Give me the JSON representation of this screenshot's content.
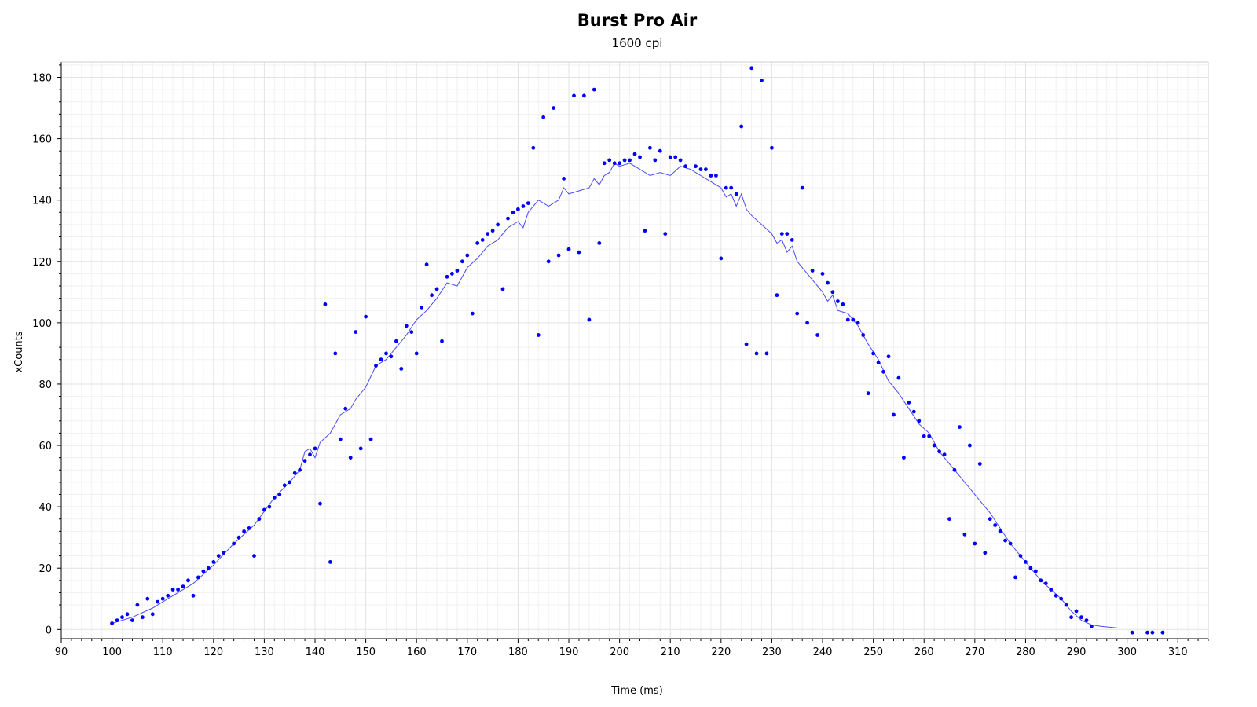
{
  "chart_data": {
    "type": "scatter",
    "title": "Burst Pro Air",
    "subtitle": "1600 cpi",
    "xlabel": "Time (ms)",
    "ylabel": "xCounts",
    "xlim": [
      90,
      316
    ],
    "ylim": [
      -3,
      185
    ],
    "x_ticks": [
      90,
      100,
      110,
      120,
      130,
      140,
      150,
      160,
      170,
      180,
      190,
      200,
      210,
      220,
      230,
      240,
      250,
      260,
      270,
      280,
      290,
      300,
      310
    ],
    "y_ticks": [
      0,
      20,
      40,
      60,
      80,
      100,
      120,
      140,
      160,
      180
    ],
    "grid": true,
    "legend": "none",
    "colors": {
      "points": "#0000ff",
      "line": "#4a4aff",
      "grid_major": "#e3e3e3",
      "grid_minor": "#f1f1f1",
      "axis": "#000000"
    },
    "series": [
      {
        "kind": "points",
        "points": [
          [
            100,
            2
          ],
          [
            101,
            3
          ],
          [
            102,
            4
          ],
          [
            103,
            5
          ],
          [
            104,
            3
          ],
          [
            105,
            8
          ],
          [
            106,
            4
          ],
          [
            107,
            10
          ],
          [
            108,
            5
          ],
          [
            109,
            9
          ],
          [
            110,
            10
          ],
          [
            111,
            11
          ],
          [
            112,
            13
          ],
          [
            113,
            13
          ],
          [
            114,
            14
          ],
          [
            115,
            16
          ],
          [
            116,
            11
          ],
          [
            117,
            17
          ],
          [
            118,
            19
          ],
          [
            119,
            20
          ],
          [
            120,
            22
          ],
          [
            121,
            24
          ],
          [
            122,
            25
          ],
          [
            124,
            28
          ],
          [
            125,
            30
          ],
          [
            126,
            32
          ],
          [
            127,
            33
          ],
          [
            128,
            24
          ],
          [
            129,
            36
          ],
          [
            130,
            39
          ],
          [
            131,
            40
          ],
          [
            132,
            43
          ],
          [
            133,
            44
          ],
          [
            134,
            47
          ],
          [
            135,
            48
          ],
          [
            136,
            51
          ],
          [
            137,
            52
          ],
          [
            138,
            55
          ],
          [
            139,
            57
          ],
          [
            140,
            59
          ],
          [
            141,
            41
          ],
          [
            142,
            106
          ],
          [
            143,
            22
          ],
          [
            144,
            90
          ],
          [
            145,
            62
          ],
          [
            146,
            72
          ],
          [
            147,
            56
          ],
          [
            148,
            97
          ],
          [
            149,
            59
          ],
          [
            150,
            102
          ],
          [
            151,
            62
          ],
          [
            152,
            86
          ],
          [
            153,
            88
          ],
          [
            154,
            90
          ],
          [
            155,
            89
          ],
          [
            156,
            94
          ],
          [
            157,
            85
          ],
          [
            158,
            99
          ],
          [
            159,
            97
          ],
          [
            160,
            90
          ],
          [
            161,
            105
          ],
          [
            162,
            119
          ],
          [
            163,
            109
          ],
          [
            164,
            111
          ],
          [
            165,
            94
          ],
          [
            166,
            115
          ],
          [
            167,
            116
          ],
          [
            168,
            117
          ],
          [
            169,
            120
          ],
          [
            170,
            122
          ],
          [
            171,
            103
          ],
          [
            172,
            126
          ],
          [
            173,
            127
          ],
          [
            174,
            129
          ],
          [
            175,
            130
          ],
          [
            176,
            132
          ],
          [
            177,
            111
          ],
          [
            178,
            134
          ],
          [
            179,
            136
          ],
          [
            180,
            137
          ],
          [
            181,
            138
          ],
          [
            182,
            139
          ],
          [
            183,
            157
          ],
          [
            184,
            96
          ],
          [
            185,
            167
          ],
          [
            186,
            120
          ],
          [
            187,
            170
          ],
          [
            188,
            122
          ],
          [
            189,
            147
          ],
          [
            190,
            124
          ],
          [
            191,
            174
          ],
          [
            192,
            123
          ],
          [
            193,
            174
          ],
          [
            194,
            101
          ],
          [
            195,
            176
          ],
          [
            196,
            126
          ],
          [
            197,
            152
          ],
          [
            198,
            153
          ],
          [
            199,
            152
          ],
          [
            200,
            152
          ],
          [
            201,
            153
          ],
          [
            202,
            153
          ],
          [
            203,
            155
          ],
          [
            204,
            154
          ],
          [
            205,
            130
          ],
          [
            206,
            157
          ],
          [
            207,
            153
          ],
          [
            208,
            156
          ],
          [
            209,
            129
          ],
          [
            210,
            154
          ],
          [
            211,
            154
          ],
          [
            212,
            153
          ],
          [
            213,
            151
          ],
          [
            215,
            151
          ],
          [
            216,
            150
          ],
          [
            217,
            150
          ],
          [
            218,
            148
          ],
          [
            219,
            148
          ],
          [
            220,
            121
          ],
          [
            221,
            144
          ],
          [
            222,
            144
          ],
          [
            223,
            142
          ],
          [
            224,
            164
          ],
          [
            225,
            93
          ],
          [
            226,
            183
          ],
          [
            227,
            90
          ],
          [
            228,
            179
          ],
          [
            229,
            90
          ],
          [
            230,
            157
          ],
          [
            231,
            109
          ],
          [
            232,
            129
          ],
          [
            233,
            129
          ],
          [
            234,
            127
          ],
          [
            235,
            103
          ],
          [
            236,
            144
          ],
          [
            237,
            100
          ],
          [
            238,
            117
          ],
          [
            239,
            96
          ],
          [
            240,
            116
          ],
          [
            241,
            113
          ],
          [
            242,
            110
          ],
          [
            243,
            107
          ],
          [
            244,
            106
          ],
          [
            245,
            101
          ],
          [
            246,
            101
          ],
          [
            247,
            100
          ],
          [
            248,
            96
          ],
          [
            249,
            77
          ],
          [
            250,
            90
          ],
          [
            251,
            87
          ],
          [
            252,
            84
          ],
          [
            253,
            89
          ],
          [
            254,
            70
          ],
          [
            255,
            82
          ],
          [
            256,
            56
          ],
          [
            257,
            74
          ],
          [
            258,
            71
          ],
          [
            259,
            68
          ],
          [
            260,
            63
          ],
          [
            261,
            63
          ],
          [
            262,
            60
          ],
          [
            263,
            58
          ],
          [
            264,
            57
          ],
          [
            265,
            36
          ],
          [
            266,
            52
          ],
          [
            267,
            66
          ],
          [
            268,
            31
          ],
          [
            269,
            60
          ],
          [
            270,
            28
          ],
          [
            271,
            54
          ],
          [
            272,
            25
          ],
          [
            273,
            36
          ],
          [
            274,
            34
          ],
          [
            275,
            32
          ],
          [
            276,
            29
          ],
          [
            277,
            28
          ],
          [
            278,
            17
          ],
          [
            279,
            24
          ],
          [
            280,
            22
          ],
          [
            281,
            20
          ],
          [
            282,
            19
          ],
          [
            283,
            16
          ],
          [
            284,
            15
          ],
          [
            285,
            13
          ],
          [
            286,
            11
          ],
          [
            287,
            10
          ],
          [
            288,
            8
          ],
          [
            289,
            4
          ],
          [
            290,
            6
          ],
          [
            291,
            4
          ],
          [
            292,
            3
          ],
          [
            293,
            1
          ],
          [
            301,
            -1
          ],
          [
            304,
            -1
          ],
          [
            305,
            -1
          ],
          [
            307,
            -1
          ]
        ]
      },
      {
        "kind": "line",
        "points": [
          [
            100,
            2
          ],
          [
            104,
            4
          ],
          [
            108,
            7
          ],
          [
            112,
            11
          ],
          [
            116,
            15
          ],
          [
            120,
            21
          ],
          [
            124,
            28
          ],
          [
            128,
            34
          ],
          [
            132,
            43
          ],
          [
            135,
            48
          ],
          [
            137,
            52
          ],
          [
            138,
            58
          ],
          [
            139,
            59
          ],
          [
            140,
            56
          ],
          [
            141,
            61
          ],
          [
            143,
            64
          ],
          [
            145,
            70
          ],
          [
            147,
            72
          ],
          [
            148,
            75
          ],
          [
            150,
            79
          ],
          [
            152,
            86
          ],
          [
            154,
            88
          ],
          [
            156,
            92
          ],
          [
            158,
            96
          ],
          [
            160,
            101
          ],
          [
            162,
            104
          ],
          [
            164,
            108
          ],
          [
            166,
            113
          ],
          [
            168,
            112
          ],
          [
            170,
            118
          ],
          [
            172,
            121
          ],
          [
            174,
            125
          ],
          [
            176,
            127
          ],
          [
            178,
            131
          ],
          [
            180,
            133
          ],
          [
            181,
            131
          ],
          [
            182,
            136
          ],
          [
            184,
            140
          ],
          [
            186,
            138
          ],
          [
            188,
            140
          ],
          [
            189,
            144
          ],
          [
            190,
            142
          ],
          [
            192,
            143
          ],
          [
            194,
            144
          ],
          [
            195,
            147
          ],
          [
            196,
            145
          ],
          [
            197,
            148
          ],
          [
            198,
            149
          ],
          [
            199,
            152
          ],
          [
            200,
            151
          ],
          [
            202,
            152
          ],
          [
            204,
            150
          ],
          [
            206,
            148
          ],
          [
            208,
            149
          ],
          [
            210,
            148
          ],
          [
            212,
            151
          ],
          [
            214,
            150
          ],
          [
            216,
            148
          ],
          [
            218,
            146
          ],
          [
            220,
            144
          ],
          [
            221,
            141
          ],
          [
            222,
            142
          ],
          [
            223,
            138
          ],
          [
            224,
            142
          ],
          [
            225,
            137
          ],
          [
            226,
            135
          ],
          [
            228,
            132
          ],
          [
            230,
            129
          ],
          [
            231,
            126
          ],
          [
            232,
            127
          ],
          [
            233,
            123
          ],
          [
            234,
            125
          ],
          [
            235,
            120
          ],
          [
            237,
            116
          ],
          [
            239,
            112
          ],
          [
            240,
            110
          ],
          [
            241,
            107
          ],
          [
            242,
            109
          ],
          [
            243,
            104
          ],
          [
            245,
            103
          ],
          [
            247,
            99
          ],
          [
            249,
            93
          ],
          [
            251,
            88
          ],
          [
            253,
            81
          ],
          [
            255,
            77
          ],
          [
            257,
            72
          ],
          [
            259,
            67
          ],
          [
            261,
            64
          ],
          [
            263,
            58
          ],
          [
            265,
            54
          ],
          [
            267,
            50
          ],
          [
            269,
            46
          ],
          [
            271,
            42
          ],
          [
            273,
            38
          ],
          [
            275,
            33
          ],
          [
            277,
            28
          ],
          [
            279,
            24
          ],
          [
            281,
            20
          ],
          [
            283,
            16
          ],
          [
            285,
            13
          ],
          [
            287,
            10
          ],
          [
            289,
            6
          ],
          [
            291,
            3
          ],
          [
            293,
            1.5
          ],
          [
            295,
            1
          ],
          [
            298,
            0.5
          ]
        ]
      }
    ]
  }
}
